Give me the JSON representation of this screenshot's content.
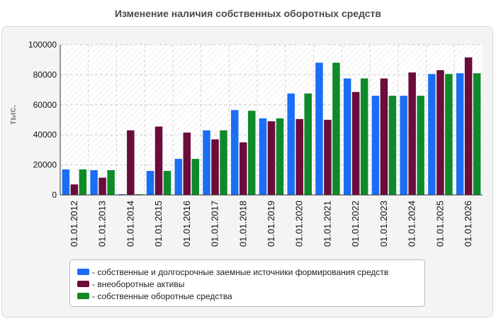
{
  "chart_data": {
    "type": "bar",
    "title": "Изменение наличия собственных оборотных средств",
    "xlabel": "",
    "ylabel": "тыс.",
    "ylim": [
      0,
      100000
    ],
    "yticks": [
      0,
      20000,
      40000,
      60000,
      80000,
      100000
    ],
    "grid": true,
    "legend_position": "bottom",
    "categories": [
      "01.01.2012",
      "01.01.2013",
      "01.01.2014",
      "01.01.2015",
      "01.01.2016",
      "01.01.2017",
      "01.01.2018",
      "01.01.2019",
      "01.01.2020",
      "01.01.2021",
      "01.01.2022",
      "01.01.2023",
      "01.01.2024",
      "01.01.2025",
      "01.01.2026"
    ],
    "series": [
      {
        "name": "- собственные и долгосрочные заемные источники формирования средств",
        "color": "#1a6ef5",
        "values": [
          17000,
          16500,
          500,
          16000,
          24000,
          43000,
          56500,
          51000,
          67500,
          88000,
          77500,
          66000,
          66000,
          80500,
          81000
        ]
      },
      {
        "name": "- внеоборотные активы",
        "color": "#6b0c3b",
        "values": [
          7000,
          11500,
          43000,
          45500,
          41500,
          37000,
          35000,
          49000,
          50500,
          50000,
          68500,
          77500,
          81500,
          83000,
          91500
        ]
      },
      {
        "name": "- собственные оборотные средства",
        "color": "#0e8a2a",
        "values": [
          17000,
          16500,
          500,
          16000,
          24000,
          43000,
          56000,
          51000,
          67500,
          88000,
          77500,
          66000,
          66000,
          80500,
          81000
        ]
      }
    ]
  }
}
